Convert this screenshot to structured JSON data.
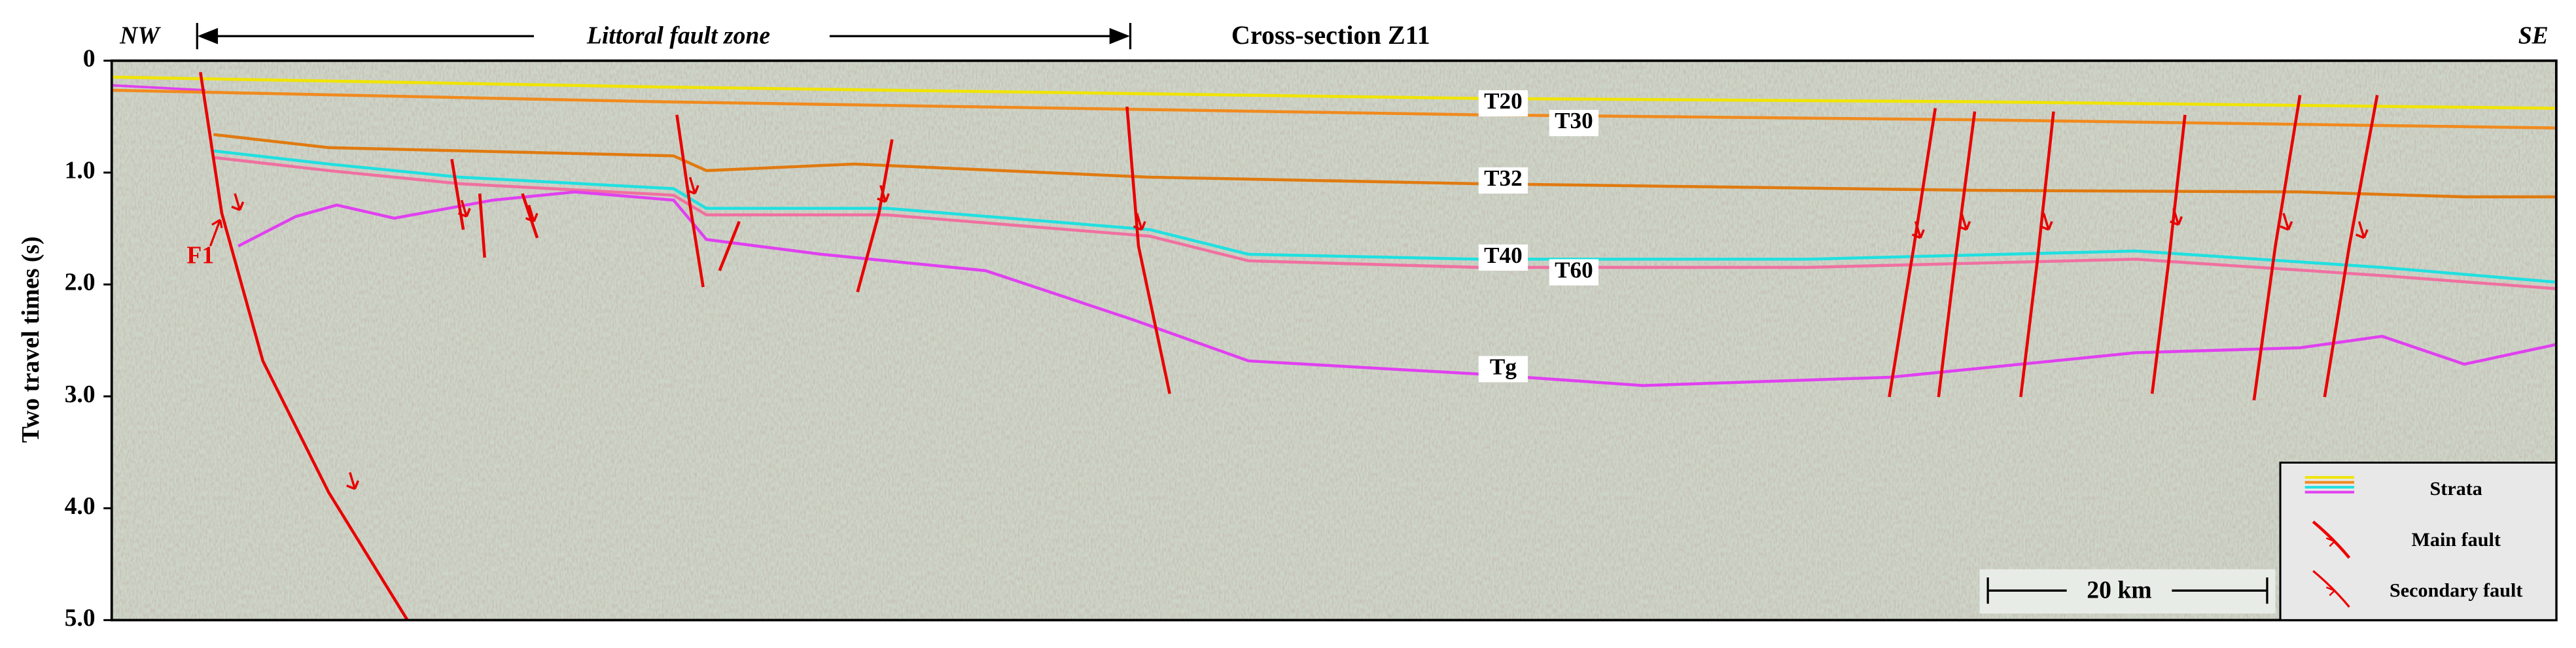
{
  "header": {
    "left": "NW",
    "zone": "Littoral fault zone",
    "title": "Cross-section Z11",
    "right": "SE"
  },
  "axis": {
    "label": "Two travel times (s)",
    "ticks": [
      {
        "value": 0,
        "label": "0"
      },
      {
        "value": 1,
        "label": "1.0"
      },
      {
        "value": 2,
        "label": "2.0"
      },
      {
        "value": 3,
        "label": "3.0"
      },
      {
        "value": 4,
        "label": "4.0"
      },
      {
        "value": 5,
        "label": "5.0"
      }
    ],
    "lim": [
      0,
      5
    ]
  },
  "horizons": [
    {
      "label": "T20",
      "color": "#f0e400"
    },
    {
      "label": "T30",
      "color": "#f08a1e"
    },
    {
      "label": "T32",
      "color": "#e07a10"
    },
    {
      "label": "T40",
      "color": "#20e0e0"
    },
    {
      "label": "T60",
      "color": "#f070a0"
    },
    {
      "label": "Tg",
      "color": "#e040f0"
    }
  ],
  "faults": [
    {
      "label": "F1"
    }
  ],
  "scale_bar": {
    "label": "20 km"
  },
  "legend": [
    {
      "label": "Strata"
    },
    {
      "label": "Main fault"
    },
    {
      "label": "Secondary fault"
    }
  ]
}
